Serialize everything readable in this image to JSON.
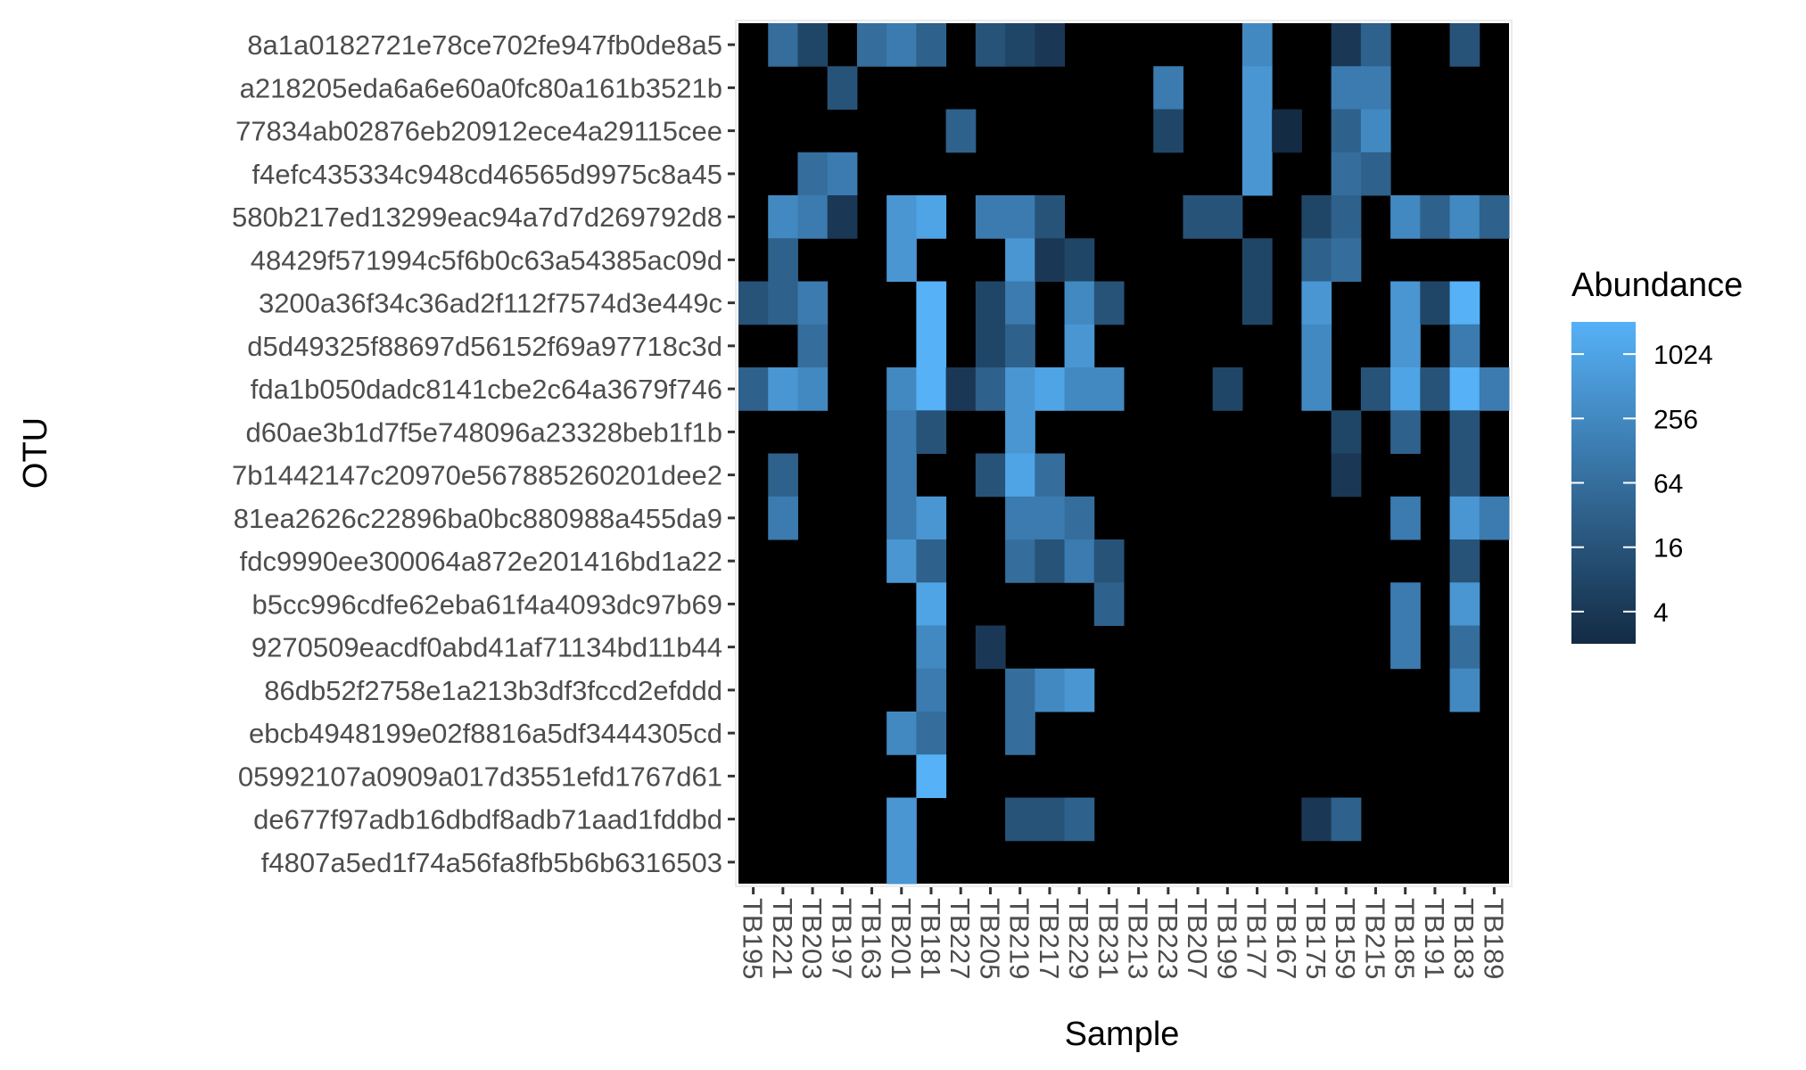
{
  "chart_data": {
    "type": "heatmap",
    "xlabel": "Sample",
    "ylabel": "OTU",
    "legend": {
      "title": "Abundance",
      "scale": "log2",
      "ticks": [
        "1024",
        "256",
        "64",
        "16",
        "4"
      ],
      "tick_values": [
        1024,
        256,
        64,
        16,
        4
      ],
      "range": [
        2,
        2048
      ],
      "placement": "right",
      "low_color": "#132B43",
      "high_color": "#56B1F7"
    },
    "background_color": "#000000",
    "columns": [
      "TB195",
      "TB221",
      "TB203",
      "TB197",
      "TB163",
      "TB201",
      "TB181",
      "TB227",
      "TB205",
      "TB219",
      "TB217",
      "TB229",
      "TB231",
      "TB213",
      "TB223",
      "TB207",
      "TB199",
      "TB177",
      "TB167",
      "TB175",
      "TB159",
      "TB215",
      "TB185",
      "TB191",
      "TB183",
      "TB189"
    ],
    "rows": [
      "8a1a0182721e78ce702fe947fb0de8a5",
      "a218205eda6a6e60a0fc80a161b3521b",
      "77834ab02876eb20912ece4a29115cee",
      "f4efc435334c948cd46565d9975c8a45",
      "580b217ed13299eac94a7d7d269792d8",
      "48429f571994c5f6b0c63a54385ac09d",
      "3200a36f34c36ad2f112f7574d3e449c",
      "d5d49325f88697d56152f69a97718c3d",
      "fda1b050dadc8141cbe2c64a3679f746",
      "d60ae3b1d7f5e748096a23328beb1f1b",
      "7b1442147c20970e567885260201dee2",
      "81ea2626c22896ba0bc880988a455da9",
      "fdc9990ee300064a872e201416bd1a22",
      "b5cc996cdfe62eba61f4a4093dc97b69",
      "9270509eacdf0abd41af71134bd11b44",
      "86db52f2758e1a213b3df3fccd2efddd",
      "ebcb4948199e02f8816a5df3444305cd",
      "05992107a0909a017d3551efd1767d61",
      "de677f97adb16dbdf8adb71aad1fddbd",
      "f4807a5ed1f74a56fa8fb5b6b6316503"
    ],
    "values": [
      [
        0,
        64,
        8,
        0,
        64,
        128,
        32,
        0,
        16,
        8,
        4,
        0,
        0,
        0,
        0,
        0,
        0,
        256,
        0,
        0,
        4,
        32,
        0,
        0,
        16,
        0
      ],
      [
        0,
        0,
        0,
        16,
        0,
        0,
        0,
        0,
        0,
        0,
        0,
        0,
        0,
        0,
        128,
        0,
        0,
        512,
        0,
        0,
        128,
        128,
        0,
        0,
        0,
        0
      ],
      [
        0,
        0,
        0,
        0,
        0,
        0,
        0,
        32,
        0,
        0,
        0,
        0,
        0,
        0,
        8,
        0,
        0,
        512,
        2,
        0,
        32,
        256,
        0,
        0,
        0,
        0
      ],
      [
        0,
        0,
        64,
        128,
        0,
        0,
        0,
        0,
        0,
        0,
        0,
        0,
        0,
        0,
        0,
        0,
        0,
        512,
        0,
        0,
        64,
        32,
        0,
        0,
        0,
        0
      ],
      [
        0,
        256,
        128,
        4,
        0,
        512,
        1024,
        0,
        128,
        128,
        16,
        0,
        0,
        0,
        0,
        16,
        16,
        0,
        0,
        8,
        32,
        0,
        256,
        32,
        256,
        32
      ],
      [
        0,
        32,
        0,
        0,
        0,
        512,
        0,
        0,
        0,
        512,
        4,
        8,
        0,
        0,
        0,
        0,
        0,
        8,
        0,
        32,
        64,
        0,
        0,
        0,
        0,
        0
      ],
      [
        16,
        32,
        128,
        0,
        0,
        0,
        2048,
        0,
        8,
        128,
        0,
        256,
        16,
        0,
        0,
        0,
        0,
        8,
        0,
        512,
        0,
        0,
        512,
        8,
        2048,
        0
      ],
      [
        0,
        0,
        64,
        0,
        0,
        0,
        2048,
        0,
        8,
        32,
        0,
        512,
        0,
        0,
        0,
        0,
        0,
        0,
        0,
        256,
        0,
        0,
        512,
        0,
        128,
        0
      ],
      [
        32,
        512,
        256,
        0,
        0,
        256,
        2048,
        4,
        32,
        512,
        1024,
        256,
        256,
        0,
        0,
        0,
        8,
        0,
        0,
        256,
        0,
        16,
        1024,
        16,
        2048,
        128
      ],
      [
        0,
        0,
        0,
        0,
        0,
        128,
        16,
        0,
        0,
        512,
        0,
        0,
        0,
        0,
        0,
        0,
        0,
        0,
        0,
        0,
        8,
        0,
        32,
        0,
        16,
        0
      ],
      [
        0,
        32,
        0,
        0,
        0,
        128,
        0,
        0,
        16,
        1024,
        64,
        0,
        0,
        0,
        0,
        0,
        0,
        0,
        0,
        0,
        4,
        0,
        0,
        0,
        16,
        0
      ],
      [
        0,
        128,
        0,
        0,
        0,
        128,
        512,
        0,
        0,
        128,
        128,
        64,
        0,
        0,
        0,
        0,
        0,
        0,
        0,
        0,
        0,
        0,
        128,
        0,
        512,
        128
      ],
      [
        0,
        0,
        0,
        0,
        0,
        512,
        32,
        0,
        0,
        64,
        16,
        128,
        16,
        0,
        0,
        0,
        0,
        0,
        0,
        0,
        0,
        0,
        0,
        0,
        16,
        0
      ],
      [
        0,
        0,
        0,
        0,
        0,
        0,
        1024,
        0,
        0,
        0,
        0,
        0,
        32,
        0,
        0,
        0,
        0,
        0,
        0,
        0,
        0,
        0,
        128,
        0,
        512,
        0
      ],
      [
        0,
        0,
        0,
        0,
        0,
        0,
        256,
        0,
        4,
        0,
        0,
        0,
        0,
        0,
        0,
        0,
        0,
        0,
        0,
        0,
        0,
        0,
        128,
        0,
        64,
        0
      ],
      [
        0,
        0,
        0,
        0,
        0,
        0,
        128,
        0,
        0,
        64,
        256,
        512,
        0,
        0,
        0,
        0,
        0,
        0,
        0,
        0,
        0,
        0,
        0,
        0,
        256,
        0
      ],
      [
        0,
        0,
        0,
        0,
        0,
        256,
        64,
        0,
        0,
        64,
        0,
        0,
        0,
        0,
        0,
        0,
        0,
        0,
        0,
        0,
        0,
        0,
        0,
        0,
        0,
        0
      ],
      [
        0,
        0,
        0,
        0,
        0,
        0,
        2048,
        0,
        0,
        0,
        0,
        0,
        0,
        0,
        0,
        0,
        0,
        0,
        0,
        0,
        0,
        0,
        0,
        0,
        0,
        0
      ],
      [
        0,
        0,
        0,
        0,
        0,
        512,
        0,
        0,
        0,
        16,
        16,
        32,
        0,
        0,
        0,
        0,
        0,
        0,
        0,
        4,
        32,
        0,
        0,
        0,
        0,
        0
      ],
      [
        0,
        0,
        0,
        0,
        0,
        512,
        0,
        0,
        0,
        0,
        0,
        0,
        0,
        0,
        0,
        0,
        0,
        0,
        0,
        0,
        0,
        0,
        0,
        0,
        0,
        0
      ]
    ]
  }
}
